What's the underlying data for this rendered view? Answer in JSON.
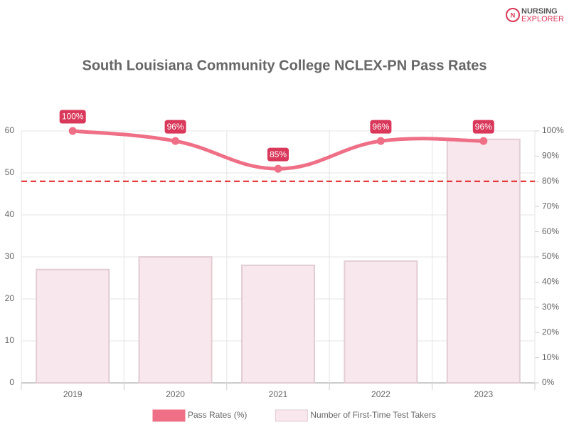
{
  "logo": {
    "line1": "NURSING",
    "line2": "EXPLORER"
  },
  "chart_data": {
    "type": "bar-line",
    "title": "South Louisiana Community College NCLEX-PN Pass Rates",
    "categories": [
      "2019",
      "2020",
      "2021",
      "2022",
      "2023"
    ],
    "series": [
      {
        "name": "Pass Rates (%)",
        "type": "line",
        "axis": "y2",
        "color": "#ef6f86",
        "values": [
          100,
          96,
          85,
          96,
          96
        ],
        "value_labels": [
          "100%",
          "96%",
          "85%",
          "96%",
          "96%"
        ]
      },
      {
        "name": "Number of First-Time Test Takers",
        "type": "bar",
        "color": "#f8e7ec",
        "values": [
          27,
          30,
          28,
          29,
          58
        ]
      }
    ],
    "ylim": [
      0,
      60
    ],
    "yticks": [
      0,
      10,
      20,
      30,
      40,
      50,
      60
    ],
    "y2lim": [
      0,
      100
    ],
    "y2ticks": [
      {
        "value": 0,
        "label": "0%"
      },
      {
        "value": 10,
        "label": "10%"
      },
      {
        "value": 20,
        "label": "20%"
      },
      {
        "value": 30,
        "label": "30%"
      },
      {
        "value": 40,
        "label": "40%"
      },
      {
        "value": 50,
        "label": "50%"
      },
      {
        "value": 60,
        "label": "60%"
      },
      {
        "value": 70,
        "label": "70%"
      },
      {
        "value": 80,
        "label": "80%"
      },
      {
        "value": 90,
        "label": "90%"
      },
      {
        "value": 100,
        "label": "100%"
      }
    ],
    "reference_line": {
      "value": 80,
      "axis": "y2",
      "color": "#e02020"
    },
    "grid": true
  }
}
